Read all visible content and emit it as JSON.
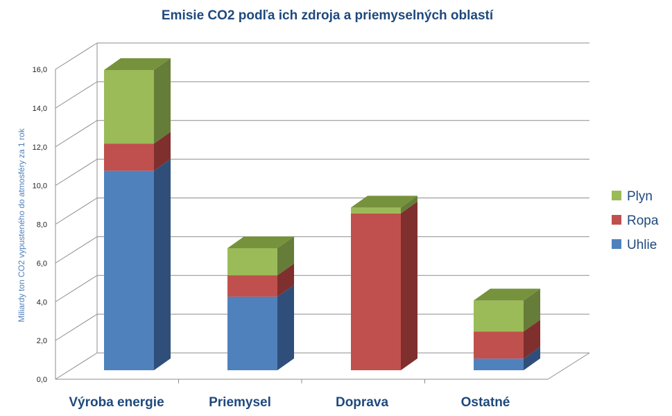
{
  "chart_data": {
    "type": "bar",
    "stacked": true,
    "three_d": true,
    "title": "Emisie CO2 podľa ich zdroja a priemyselných oblastí",
    "ylabel": "Miliardy ton CO2 vypusteného do atmosféry za 1 rok",
    "xlabel": "",
    "ylim": [
      0,
      16
    ],
    "yticks": [
      "0,0",
      "2,0",
      "4,0",
      "6,0",
      "8,0",
      "10,0",
      "12,0",
      "14,0",
      "16,0"
    ],
    "grid": true,
    "legend_position": "right",
    "categories": [
      "Výroba energie",
      "Priemysel",
      "Doprava",
      "Ostatné"
    ],
    "series": [
      {
        "name": "Uhlie",
        "values": [
          10.3,
          3.8,
          0.0,
          0.6
        ],
        "color": "#4f81bd",
        "side_color": "#2f4f7a",
        "top_color": "#5b8bc5"
      },
      {
        "name": "Ropa",
        "values": [
          1.4,
          1.1,
          8.1,
          1.4
        ],
        "color": "#c0504d",
        "side_color": "#7f2f2d",
        "top_color": "#c65855"
      },
      {
        "name": "Plyn",
        "values": [
          3.8,
          1.4,
          0.3,
          1.6
        ],
        "color": "#9bbb59",
        "side_color": "#667c39",
        "top_color": "#76923c"
      }
    ]
  }
}
